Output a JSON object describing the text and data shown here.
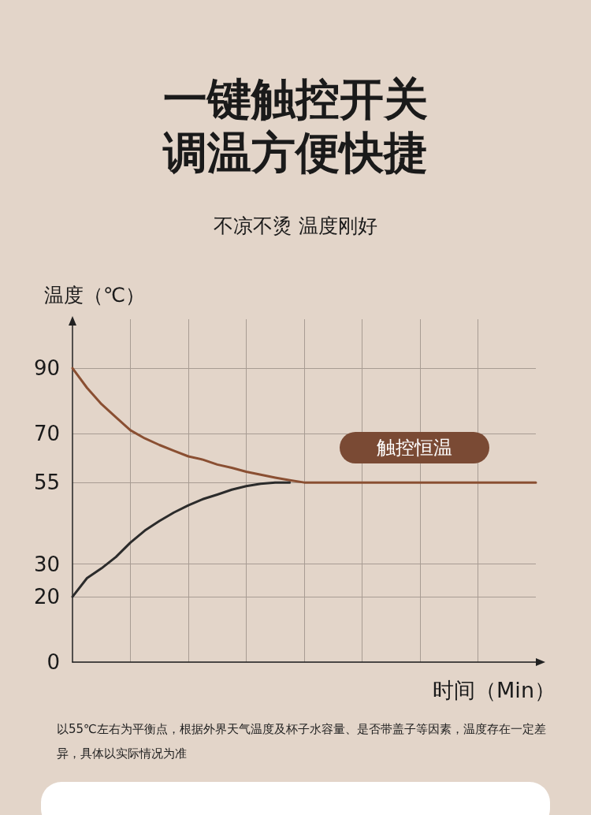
{
  "chart_data": {
    "type": "line",
    "title": "一键触控开关调温方便快捷",
    "subtitle": "不凉不烫 温度刚好",
    "ylabel": "温度（℃）",
    "xlabel": "时间（Min）",
    "annotations": [
      "触控恒温",
      "以55℃左右为平衡点，根据外界天气温度及杯子水容量、是否带盖子等因素，温度存在一定差异，具体以实际情况为准"
    ],
    "categories": [
      null,
      null,
      null,
      null,
      null,
      null,
      null,
      null,
      null,
      null,
      null,
      null,
      null,
      null,
      null,
      null,
      null,
      null,
      null,
      null,
      null,
      null,
      null,
      null,
      null,
      null,
      null,
      null,
      null,
      null,
      null,
      null,
      null
    ],
    "series": [
      {
        "color": "#8a4f32",
        "values": [
          90,
          84,
          79,
          75,
          71,
          68.5,
          66.5,
          64.7,
          63,
          62,
          60.5,
          59.5,
          58.3,
          57.4,
          56.5,
          55.7,
          55,
          55,
          55,
          55,
          55,
          55,
          55,
          55,
          55,
          55,
          55,
          55,
          55,
          55,
          55,
          55,
          55
        ]
      },
      {
        "color": "#2b2b2b",
        "values": [
          20,
          25.7,
          28.7,
          32.2,
          36.6,
          40.3,
          43.2,
          45.8,
          48,
          49.9,
          51.3,
          52.8,
          53.9,
          54.6,
          55,
          55,
          null,
          null,
          null,
          null,
          null,
          null,
          null,
          null,
          null,
          null,
          null,
          null,
          null,
          null,
          null,
          null,
          null
        ]
      }
    ],
    "ylim": [
      0,
      105
    ],
    "yticks": [
      0,
      20,
      30,
      55,
      70,
      90
    ],
    "grid": true,
    "marker": "none",
    "line_style": "solid"
  }
}
